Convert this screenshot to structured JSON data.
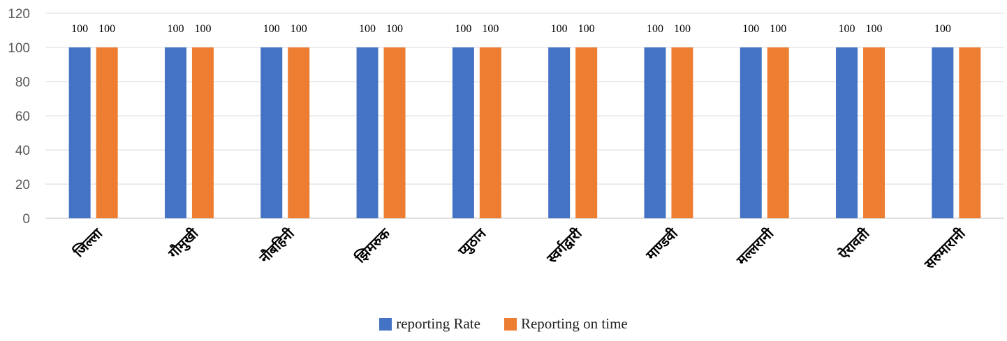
{
  "chart_data": {
    "type": "bar",
    "categories": [
      "जिल्ला",
      "गौमुखी",
      "नौबहिनी",
      "झिमरुक",
      "प्युठान",
      "स्वर्गद्वारी",
      "माण्डवी",
      "मल्लरानी",
      "ऐरावती",
      "सरुमारानी"
    ],
    "series": [
      {
        "name": "reporting Rate",
        "values": [
          100,
          100,
          100,
          100,
          100,
          100,
          100,
          100,
          100,
          100
        ],
        "color": "#4472C4",
        "data_labels": [
          "100",
          "100",
          "100",
          "100",
          "100",
          "100",
          "100",
          "100",
          "100",
          "100"
        ]
      },
      {
        "name": "Reporting on time",
        "values": [
          100,
          100,
          100,
          100,
          100,
          100,
          100,
          100,
          100,
          100
        ],
        "color": "#ED7D31",
        "data_labels": [
          "100",
          "100",
          "100",
          "100",
          "100",
          "100",
          "100",
          "100",
          "100",
          ""
        ]
      }
    ],
    "yticks": [
      "0",
      "20",
      "40",
      "60",
      "80",
      "100",
      "120"
    ],
    "ylim": [
      0,
      120
    ],
    "grid": true,
    "legend_position": "bottom"
  }
}
